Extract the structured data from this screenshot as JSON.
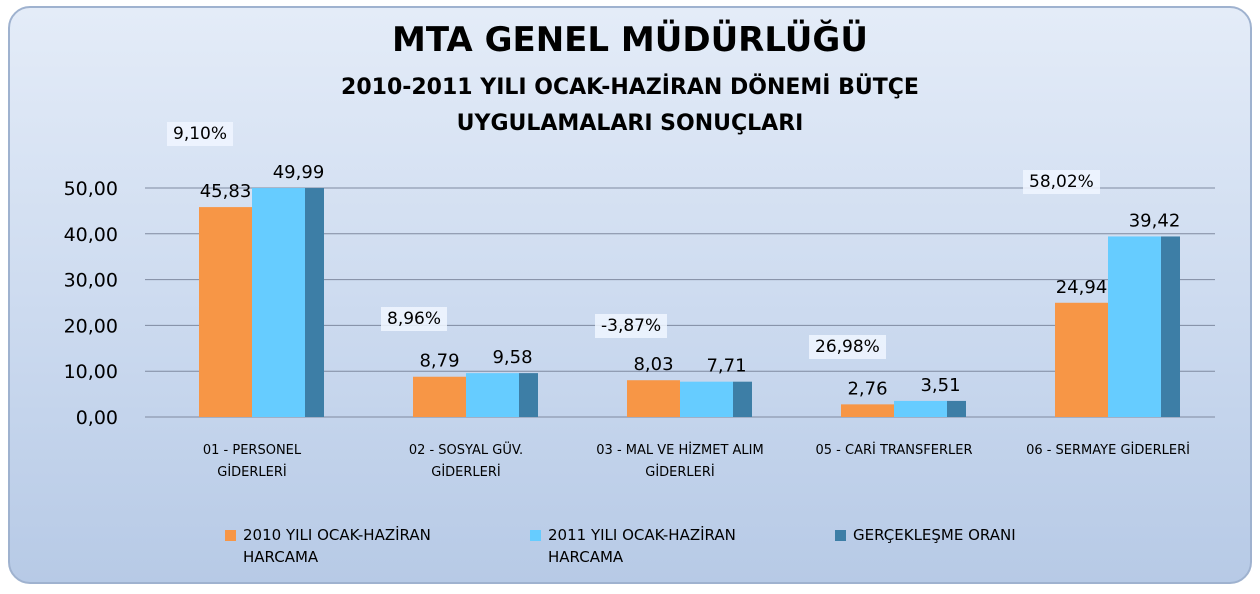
{
  "chart_data": {
    "type": "bar",
    "title": "MTA GENEL MÜDÜRLÜĞÜ",
    "subtitle": "2010-2011 YILI OCAK-HAZİRAN DÖNEMİ BÜTÇE UYGULAMALARI SONUÇLARI",
    "categories": [
      "01 - PERSONEL GİDERLERİ",
      "02 - SOSYAL GÜV. GİDERLERİ",
      "03 - MAL VE HİZMET ALIM GİDERLERİ",
      "05 - CARİ TRANSFERLER",
      "06 - SERMAYE GİDERLERİ"
    ],
    "series": [
      {
        "name": "2010 YILI OCAK-HAZİRAN HARCAMA",
        "color": "#f79646",
        "values": [
          45.83,
          8.79,
          8.03,
          2.76,
          24.94
        ],
        "value_labels": [
          "45,83",
          "8,79",
          "8,03",
          "2,76",
          "24,94"
        ]
      },
      {
        "name": "2011 YILI OCAK-HAZİRAN HARCAMA",
        "color": "#66ccff",
        "values": [
          49.99,
          9.58,
          7.71,
          3.51,
          39.42
        ],
        "value_labels": [
          "49,99",
          "9,58",
          "7,71",
          "3,51",
          "39,42"
        ]
      },
      {
        "name": "GERÇEKLEŞME ORANI",
        "color": "#3d7ea6",
        "values": [
          9.1,
          8.96,
          -3.87,
          26.98,
          58.02
        ],
        "value_labels": [
          "9,10%",
          "8,96%",
          "-3,87%",
          "26,98%",
          "58,02%"
        ]
      }
    ],
    "ylim": [
      0,
      50
    ],
    "yticks": [
      {
        "value": 0,
        "label": "0,00"
      },
      {
        "value": 10,
        "label": "10,00"
      },
      {
        "value": 20,
        "label": "20,00"
      },
      {
        "value": 30,
        "label": "30,00"
      },
      {
        "value": 40,
        "label": "40,00"
      },
      {
        "value": 50,
        "label": "50,00"
      }
    ],
    "grid": true
  }
}
